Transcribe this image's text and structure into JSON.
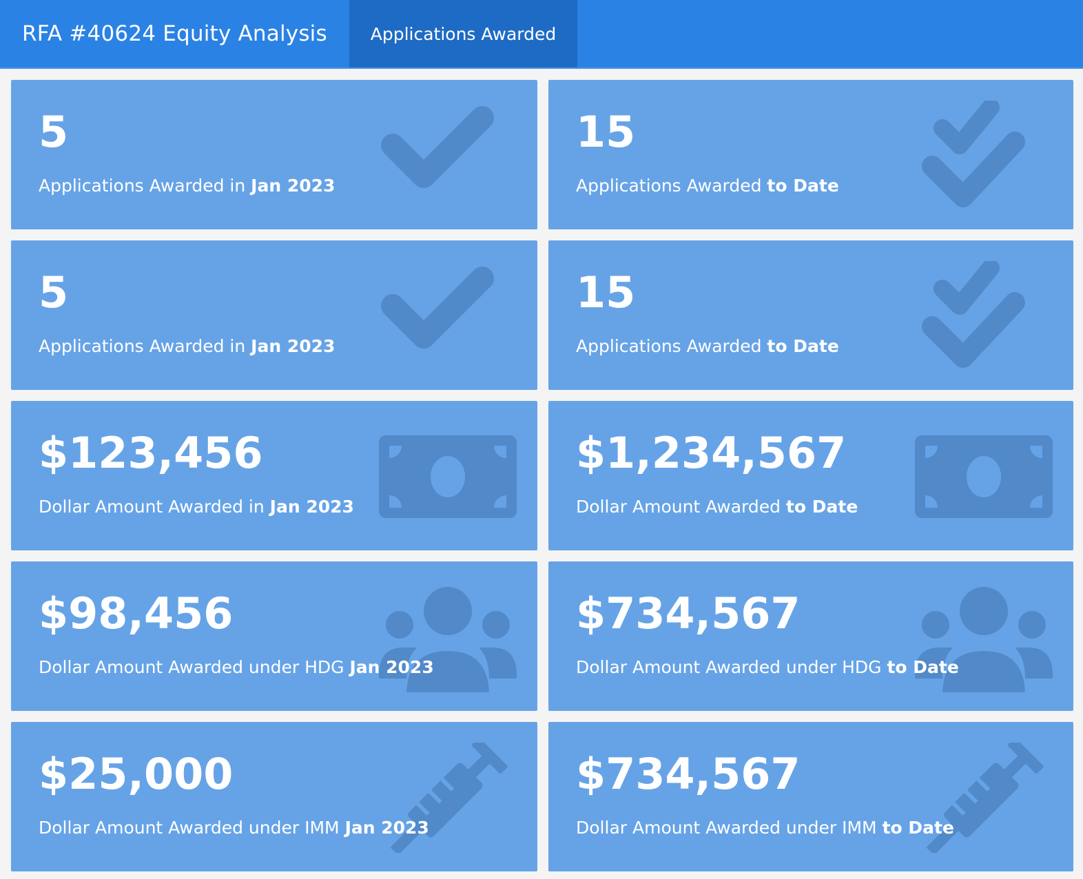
{
  "header": {
    "title": "RFA #40624 Equity Analysis",
    "tab_label": "Applications Awarded"
  },
  "colors": {
    "navbar": "#2a82e4",
    "active_tab": "#1e6bc6",
    "card": "#66a3e6",
    "icon": "#5289c8",
    "background": "#f4f4f4"
  },
  "cards": [
    {
      "value": "5",
      "label": "Applications Awarded in ",
      "emphasis": "Jan 2023",
      "icon": "check-icon"
    },
    {
      "value": "15",
      "label": "Applications Awarded ",
      "emphasis": "to Date",
      "icon": "double-check-icon"
    },
    {
      "value": "5",
      "label": "Applications Awarded in ",
      "emphasis": "Jan 2023",
      "icon": "check-icon"
    },
    {
      "value": "15",
      "label": "Applications Awarded ",
      "emphasis": "to Date",
      "icon": "double-check-icon"
    },
    {
      "value": "$123,456",
      "label": "Dollar Amount Awarded in ",
      "emphasis": "Jan 2023",
      "icon": "money-bill-icon"
    },
    {
      "value": "$1,234,567",
      "label": "Dollar Amount Awarded ",
      "emphasis": "to Date",
      "icon": "money-bill-icon"
    },
    {
      "value": "$98,456",
      "label": "Dollar Amount Awarded under HDG ",
      "emphasis": "Jan 2023",
      "icon": "users-icon"
    },
    {
      "value": "$734,567",
      "label": "Dollar Amount Awarded under HDG ",
      "emphasis": "to Date",
      "icon": "users-icon"
    },
    {
      "value": "$25,000",
      "label": "Dollar Amount Awarded under IMM ",
      "emphasis": "Jan 2023",
      "icon": "syringe-icon"
    },
    {
      "value": "$734,567",
      "label": "Dollar Amount Awarded under IMM ",
      "emphasis": "to Date",
      "icon": "syringe-icon"
    }
  ]
}
